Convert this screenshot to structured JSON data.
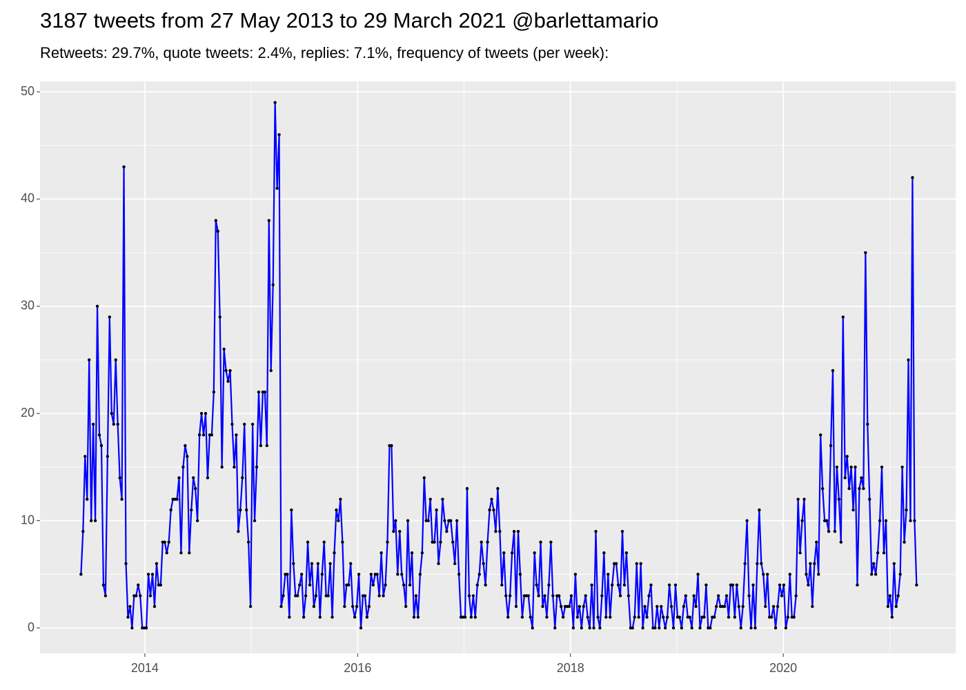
{
  "chart_data": {
    "type": "line",
    "title": "3187 tweets from 27 May 2013 to 29 March 2021 @barlettamario",
    "subtitle": "Retweets: 29.7%, quote tweets: 2.4%, replies: 7.1%, frequency of tweets (per week):",
    "x": [
      2013.4,
      2013.4192,
      2013.4384,
      2013.4576,
      2013.4768,
      2013.496,
      2013.5152,
      2013.5344,
      2013.5536,
      2013.5728,
      2013.592,
      2013.6112,
      2013.6304,
      2013.6496,
      2013.6688,
      2013.688,
      2013.7072,
      2013.7264,
      2013.7456,
      2013.7648,
      2013.784,
      2013.8032,
      2013.8224,
      2013.8416,
      2013.8608,
      2013.88,
      2013.8992,
      2013.9184,
      2013.9376,
      2013.9568,
      2013.976,
      2013.9952,
      2014.0144,
      2014.0336,
      2014.0528,
      2014.072,
      2014.0912,
      2014.1104,
      2014.1296,
      2014.1488,
      2014.168,
      2014.1872,
      2014.2064,
      2014.2256,
      2014.2448,
      2014.264,
      2014.2832,
      2014.3024,
      2014.3216,
      2014.3408,
      2014.36,
      2014.3792,
      2014.3984,
      2014.4176,
      2014.4368,
      2014.456,
      2014.4752,
      2014.4944,
      2014.5136,
      2014.5328,
      2014.552,
      2014.5712,
      2014.5904,
      2014.6096,
      2014.6288,
      2014.648,
      2014.6672,
      2014.6864,
      2014.7056,
      2014.7248,
      2014.744,
      2014.7632,
      2014.7824,
      2014.8016,
      2014.8208,
      2014.84,
      2014.8592,
      2014.8784,
      2014.8976,
      2014.9168,
      2014.936,
      2014.9552,
      2014.9744,
      2014.9936,
      2015.0128,
      2015.032,
      2015.0512,
      2015.0704,
      2015.0896,
      2015.1088,
      2015.128,
      2015.1472,
      2015.1664,
      2015.1856,
      2015.2048,
      2015.224,
      2015.2432,
      2015.2624,
      2015.2816,
      2015.3008,
      2015.32,
      2015.3392,
      2015.3584,
      2015.3776,
      2015.3968,
      2015.416,
      2015.4352,
      2015.4544,
      2015.4736,
      2015.4928,
      2015.512,
      2015.5312,
      2015.5504,
      2015.5696,
      2015.5888,
      2015.608,
      2015.6272,
      2015.6464,
      2015.6656,
      2015.6848,
      2015.704,
      2015.7232,
      2015.7424,
      2015.7616,
      2015.7808,
      2015.8,
      2015.8192,
      2015.8384,
      2015.8576,
      2015.8768,
      2015.896,
      2015.9152,
      2015.9344,
      2015.9536,
      2015.9728,
      2015.992,
      2016.0112,
      2016.0304,
      2016.0496,
      2016.0688,
      2016.088,
      2016.1072,
      2016.1264,
      2016.1456,
      2016.1648,
      2016.184,
      2016.2032,
      2016.2224,
      2016.2416,
      2016.2608,
      2016.28,
      2016.2992,
      2016.3184,
      2016.3376,
      2016.3568,
      2016.376,
      2016.3952,
      2016.4144,
      2016.4336,
      2016.4528,
      2016.472,
      2016.4912,
      2016.5104,
      2016.5296,
      2016.5488,
      2016.568,
      2016.5872,
      2016.6064,
      2016.6256,
      2016.6448,
      2016.664,
      2016.6832,
      2016.7024,
      2016.7216,
      2016.7408,
      2016.76,
      2016.7792,
      2016.7984,
      2016.8176,
      2016.8368,
      2016.856,
      2016.8752,
      2016.8944,
      2016.9136,
      2016.9328,
      2016.952,
      2016.9712,
      2016.9904,
      2017.0096,
      2017.0288,
      2017.048,
      2017.0672,
      2017.0864,
      2017.1056,
      2017.1248,
      2017.144,
      2017.1632,
      2017.1824,
      2017.2016,
      2017.2208,
      2017.24,
      2017.2592,
      2017.2784,
      2017.2976,
      2017.3168,
      2017.336,
      2017.3552,
      2017.3744,
      2017.3936,
      2017.4128,
      2017.432,
      2017.4512,
      2017.4704,
      2017.4896,
      2017.5088,
      2017.528,
      2017.5472,
      2017.5664,
      2017.5856,
      2017.6048,
      2017.624,
      2017.6432,
      2017.6624,
      2017.6816,
      2017.7008,
      2017.72,
      2017.7392,
      2017.7584,
      2017.7776,
      2017.7968,
      2017.816,
      2017.8352,
      2017.8544,
      2017.8736,
      2017.8928,
      2017.912,
      2017.9312,
      2017.9504,
      2017.9696,
      2017.9888,
      2018.008,
      2018.0272,
      2018.0464,
      2018.0656,
      2018.0848,
      2018.104,
      2018.1232,
      2018.1424,
      2018.1616,
      2018.1808,
      2018.2,
      2018.2192,
      2018.2384,
      2018.2576,
      2018.2768,
      2018.296,
      2018.3152,
      2018.3344,
      2018.3536,
      2018.3728,
      2018.392,
      2018.4112,
      2018.4304,
      2018.4496,
      2018.4688,
      2018.488,
      2018.5072,
      2018.5264,
      2018.5456,
      2018.5648,
      2018.584,
      2018.6032,
      2018.6224,
      2018.6416,
      2018.6608,
      2018.68,
      2018.6992,
      2018.7184,
      2018.7376,
      2018.7568,
      2018.776,
      2018.7952,
      2018.8144,
      2018.8336,
      2018.8528,
      2018.872,
      2018.8912,
      2018.9104,
      2018.9296,
      2018.9488,
      2018.968,
      2018.9872,
      2019.0064,
      2019.0256,
      2019.0448,
      2019.064,
      2019.0832,
      2019.1024,
      2019.1216,
      2019.1408,
      2019.16,
      2019.1792,
      2019.1984,
      2019.2176,
      2019.2368,
      2019.256,
      2019.2752,
      2019.2944,
      2019.3136,
      2019.3328,
      2019.352,
      2019.3712,
      2019.3904,
      2019.4096,
      2019.4288,
      2019.448,
      2019.4672,
      2019.4864,
      2019.5056,
      2019.5248,
      2019.544,
      2019.5632,
      2019.5824,
      2019.6016,
      2019.6208,
      2019.64,
      2019.6592,
      2019.6784,
      2019.6976,
      2019.7168,
      2019.736,
      2019.7552,
      2019.7744,
      2019.7936,
      2019.8128,
      2019.832,
      2019.8512,
      2019.8704,
      2019.8896,
      2019.9088,
      2019.928,
      2019.9472,
      2019.9664,
      2019.9856,
      2020.0048,
      2020.024,
      2020.0432,
      2020.0624,
      2020.0816,
      2020.1008,
      2020.12,
      2020.1392,
      2020.1584,
      2020.1776,
      2020.1968,
      2020.216,
      2020.2352,
      2020.2544,
      2020.2736,
      2020.2928,
      2020.312,
      2020.3312,
      2020.3504,
      2020.3696,
      2020.3888,
      2020.408,
      2020.4272,
      2020.4464,
      2020.4656,
      2020.4848,
      2020.504,
      2020.5232,
      2020.5424,
      2020.5616,
      2020.5808,
      2020.6,
      2020.6192,
      2020.6384,
      2020.6576,
      2020.6768,
      2020.696,
      2020.7152,
      2020.7344,
      2020.7536,
      2020.7728,
      2020.792,
      2020.8112,
      2020.8304,
      2020.8496,
      2020.8688,
      2020.888,
      2020.9072,
      2020.9264,
      2020.9456,
      2020.9648,
      2020.984,
      2021.0032,
      2021.0224,
      2021.0416,
      2021.0608,
      2021.08,
      2021.0992,
      2021.1184,
      2021.1376,
      2021.1568,
      2021.176,
      2021.1952,
      2021.2144,
      2021.2336,
      2021.2528
    ],
    "series": [
      {
        "color": "#0000ff",
        "point_color": "#000000",
        "values": [
          5,
          9,
          16,
          12,
          25,
          10,
          19,
          10,
          30,
          18,
          17,
          4,
          3,
          16,
          29,
          20,
          19,
          25,
          19,
          14,
          12,
          43,
          6,
          1,
          2,
          0,
          3,
          3,
          4,
          3,
          0,
          0,
          0,
          5,
          3,
          5,
          2,
          6,
          4,
          4,
          8,
          8,
          7,
          8,
          11,
          12,
          12,
          12,
          14,
          7,
          15,
          17,
          16,
          7,
          11,
          14,
          13,
          10,
          18,
          20,
          18,
          20,
          14,
          18,
          18,
          22,
          38,
          37,
          29,
          15,
          26,
          24,
          23,
          24,
          19,
          15,
          18,
          9,
          11,
          14,
          19,
          11,
          8,
          2,
          19,
          10,
          15,
          22,
          17,
          22,
          22,
          17,
          38,
          24,
          32,
          49,
          41,
          46,
          2,
          3,
          5,
          5,
          1,
          11,
          6,
          3,
          3,
          4,
          5,
          1,
          3,
          8,
          4,
          6,
          2,
          3,
          6,
          1,
          5,
          8,
          3,
          3,
          6,
          1,
          7,
          11,
          10,
          12,
          8,
          2,
          4,
          4,
          6,
          2,
          1,
          2,
          5,
          0,
          3,
          3,
          1,
          2,
          5,
          4,
          5,
          5,
          3,
          7,
          3,
          4,
          8,
          17,
          17,
          9,
          10,
          5,
          9,
          5,
          4,
          2,
          10,
          4,
          7,
          1,
          3,
          1,
          5,
          7,
          14,
          10,
          10,
          12,
          8,
          8,
          11,
          6,
          8,
          12,
          10,
          9,
          10,
          10,
          8,
          6,
          10,
          5,
          1,
          1,
          1,
          13,
          3,
          1,
          3,
          1,
          4,
          5,
          8,
          6,
          4,
          8,
          11,
          12,
          11,
          9,
          13,
          9,
          4,
          7,
          3,
          1,
          3,
          7,
          9,
          2,
          9,
          5,
          1,
          3,
          3,
          3,
          1,
          0,
          7,
          4,
          3,
          8,
          2,
          3,
          1,
          4,
          8,
          3,
          0,
          3,
          3,
          2,
          1,
          2,
          2,
          2,
          3,
          0,
          5,
          1,
          2,
          0,
          2,
          3,
          1,
          0,
          4,
          0,
          9,
          1,
          0,
          3,
          7,
          1,
          5,
          1,
          4,
          6,
          6,
          4,
          3,
          9,
          4,
          7,
          3,
          0,
          0,
          1,
          6,
          1,
          6,
          0,
          2,
          1,
          3,
          4,
          0,
          0,
          2,
          0,
          2,
          1,
          0,
          1,
          4,
          2,
          0,
          4,
          1,
          1,
          0,
          2,
          3,
          1,
          1,
          0,
          3,
          2,
          5,
          0,
          1,
          1,
          4,
          0,
          0,
          1,
          1,
          2,
          3,
          2,
          2,
          2,
          3,
          1,
          4,
          4,
          1,
          4,
          2,
          0,
          2,
          6,
          10,
          3,
          0,
          4,
          0,
          6,
          11,
          6,
          5,
          2,
          5,
          1,
          1,
          2,
          0,
          2,
          4,
          3,
          4,
          0,
          1,
          5,
          1,
          1,
          3,
          12,
          7,
          10,
          12,
          5,
          4,
          6,
          2,
          6,
          8,
          5,
          18,
          13,
          10,
          10,
          9,
          17,
          24,
          9,
          15,
          12,
          8,
          29,
          14,
          16,
          13,
          15,
          11,
          15,
          4,
          13,
          14,
          13,
          35,
          19,
          12,
          5,
          6,
          5,
          7,
          10,
          15,
          7,
          10,
          2,
          3,
          1,
          6,
          2,
          3,
          5,
          15,
          8,
          11,
          25,
          10,
          42,
          10,
          4
        ]
      }
    ],
    "xlim": [
      2013.015,
      2021.62
    ],
    "xticks": [
      2014,
      2016,
      2018,
      2020
    ],
    "ylim": [
      -2.38,
      50.97
    ],
    "yticks": [
      0,
      10,
      20,
      30,
      40,
      50
    ],
    "grid": true,
    "background": "#ebebeb"
  }
}
